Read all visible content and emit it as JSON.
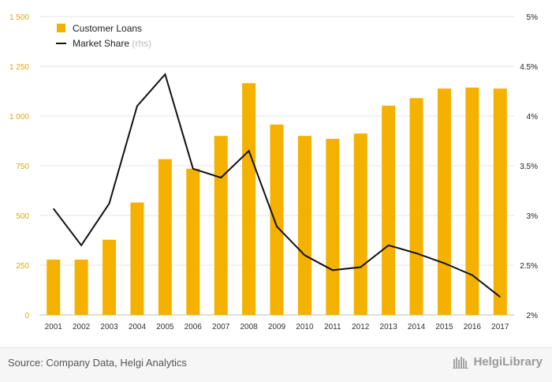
{
  "colors": {
    "bar": "#f5b100",
    "line": "#111111",
    "left_axis_text": "#e5a800",
    "right_axis_text": "#222222",
    "grid": "#e4e4e4"
  },
  "chart_data": {
    "type": "bar",
    "categories": [
      "2001",
      "2002",
      "2003",
      "2004",
      "2005",
      "2006",
      "2007",
      "2008",
      "2009",
      "2010",
      "2011",
      "2012",
      "2013",
      "2014",
      "2015",
      "2016",
      "2017"
    ],
    "series": [
      {
        "name": "Customer Loans",
        "type": "bar",
        "axis": "left",
        "values": [
          278,
          278,
          378,
          565,
          783,
          735,
          900,
          1165,
          957,
          900,
          885,
          912,
          1052,
          1090,
          1138,
          1143,
          1138
        ]
      },
      {
        "name": "Market Share",
        "name_suffix": "(rhs)",
        "type": "line",
        "axis": "right",
        "values": [
          3.07,
          2.7,
          3.12,
          4.1,
          4.42,
          3.47,
          3.38,
          3.65,
          2.89,
          2.6,
          2.45,
          2.48,
          2.7,
          2.62,
          2.52,
          2.4,
          2.18
        ]
      }
    ],
    "left_axis": {
      "ylim": [
        0,
        1500
      ],
      "ticks": [
        0,
        250,
        500,
        750,
        1000,
        1250,
        1500
      ],
      "tick_labels": [
        "0",
        "250",
        "500",
        "750",
        "1 000",
        "1 250",
        "1 500"
      ]
    },
    "right_axis": {
      "ylim": [
        2,
        5
      ],
      "ticks": [
        2,
        2.5,
        3,
        3.5,
        4,
        4.5,
        5
      ],
      "tick_labels": [
        "2%",
        "2.5%",
        "3%",
        "3.5%",
        "4%",
        "4.5%",
        "5%"
      ]
    },
    "grid": true,
    "legend_position": "top-left"
  },
  "footer": {
    "source": "Source: Company Data, Helgi Analytics",
    "brand": "HelgiLibrary"
  }
}
